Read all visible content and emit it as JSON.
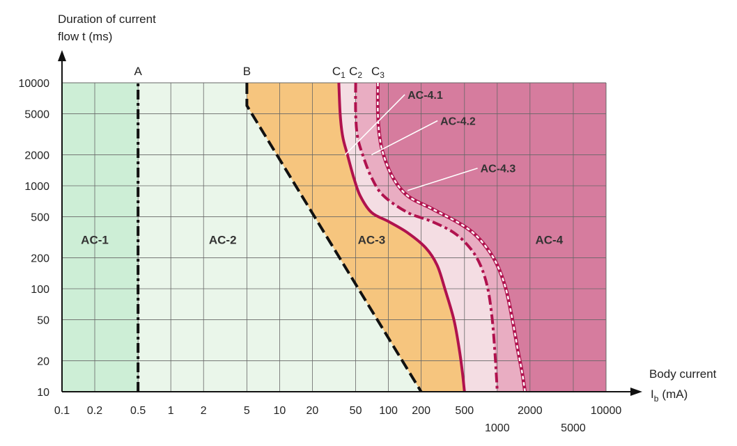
{
  "chart_data": {
    "type": "line",
    "title": "",
    "xlabel": "Body current",
    "xlabel_symbol": "I",
    "xlabel_sub": "b",
    "xlabel_unit": "(mA)",
    "ylabel_line1": "Duration of current",
    "ylabel_line2": "flow t (ms)",
    "x_scale": "log",
    "y_scale": "log",
    "xlim": [
      0.1,
      10000
    ],
    "ylim": [
      10,
      10000
    ],
    "grid": true,
    "x_ticks": [
      {
        "value": 0.1,
        "label": "0.1",
        "row": 1
      },
      {
        "value": 0.2,
        "label": "0.2",
        "row": 1
      },
      {
        "value": 0.5,
        "label": "0.5",
        "row": 1
      },
      {
        "value": 1,
        "label": "1",
        "row": 1
      },
      {
        "value": 2,
        "label": "2",
        "row": 1
      },
      {
        "value": 5,
        "label": "5",
        "row": 1
      },
      {
        "value": 10,
        "label": "10",
        "row": 1
      },
      {
        "value": 20,
        "label": "20",
        "row": 1
      },
      {
        "value": 50,
        "label": "50",
        "row": 1
      },
      {
        "value": 100,
        "label": "100",
        "row": 1
      },
      {
        "value": 200,
        "label": "200",
        "row": 1
      },
      {
        "value": 500,
        "label": "500",
        "row": 1
      },
      {
        "value": 1000,
        "label": "1000",
        "row": 2
      },
      {
        "value": 2000,
        "label": "2000",
        "row": 1
      },
      {
        "value": 5000,
        "label": "5000",
        "row": 2
      },
      {
        "value": 10000,
        "label": "10000",
        "row": 1
      }
    ],
    "y_ticks": [
      {
        "value": 10,
        "label": "10"
      },
      {
        "value": 20,
        "label": "20"
      },
      {
        "value": 50,
        "label": "50"
      },
      {
        "value": 100,
        "label": "100"
      },
      {
        "value": 200,
        "label": "200"
      },
      {
        "value": 500,
        "label": "500"
      },
      {
        "value": 1000,
        "label": "1000"
      },
      {
        "value": 2000,
        "label": "2000"
      },
      {
        "value": 5000,
        "label": "5000"
      },
      {
        "value": 10000,
        "label": "10000"
      }
    ],
    "colors": {
      "ac1": "#cdeed6",
      "ac2": "#eaf6ea",
      "ac3": "#f6c57e",
      "ac41": "#f4dde3",
      "ac42": "#e9adc2",
      "ac4": "#d67c9e",
      "c_curves": "#b0124e",
      "ab_lines": "#111111",
      "grid": "#666666"
    },
    "zones": [
      {
        "label": "AC-1",
        "x": 0.2,
        "y": 300
      },
      {
        "label": "AC-2",
        "x": 3,
        "y": 300
      },
      {
        "label": "AC-3",
        "x": 70,
        "y": 300
      },
      {
        "label": "AC-4",
        "x": 3000,
        "y": 300
      }
    ],
    "series": [
      {
        "name": "A",
        "style": "dashdot",
        "points": [
          [
            0.5,
            10
          ],
          [
            0.5,
            10000
          ]
        ]
      },
      {
        "name": "B",
        "style": "dashed",
        "points": [
          [
            5,
            10000
          ],
          [
            5,
            6000
          ],
          [
            200,
            10
          ]
        ]
      },
      {
        "name": "C",
        "sub": "1",
        "style": "solid",
        "points": [
          [
            35,
            10000
          ],
          [
            36,
            5000
          ],
          [
            38,
            3000
          ],
          [
            42,
            2000
          ],
          [
            48,
            1200
          ],
          [
            55,
            800
          ],
          [
            70,
            550
          ],
          [
            100,
            450
          ],
          [
            150,
            350
          ],
          [
            220,
            250
          ],
          [
            280,
            170
          ],
          [
            330,
            100
          ],
          [
            400,
            50
          ],
          [
            450,
            25
          ],
          [
            480,
            15
          ],
          [
            500,
            10
          ]
        ]
      },
      {
        "name": "C",
        "sub": "2",
        "style": "dashdot",
        "points": [
          [
            50,
            10000
          ],
          [
            50,
            5000
          ],
          [
            52,
            3000
          ],
          [
            58,
            2000
          ],
          [
            70,
            1200
          ],
          [
            90,
            800
          ],
          [
            150,
            550
          ],
          [
            250,
            450
          ],
          [
            400,
            350
          ],
          [
            560,
            250
          ],
          [
            700,
            170
          ],
          [
            820,
            100
          ],
          [
            900,
            50
          ],
          [
            950,
            25
          ],
          [
            980,
            15
          ],
          [
            1000,
            10
          ]
        ]
      },
      {
        "name": "C",
        "sub": "3",
        "style": "dotted-white",
        "points": [
          [
            80,
            10000
          ],
          [
            80,
            5000
          ],
          [
            83,
            3000
          ],
          [
            90,
            2000
          ],
          [
            110,
            1200
          ],
          [
            150,
            800
          ],
          [
            250,
            600
          ],
          [
            420,
            450
          ],
          [
            600,
            350
          ],
          [
            800,
            250
          ],
          [
            1000,
            170
          ],
          [
            1200,
            100
          ],
          [
            1380,
            50
          ],
          [
            1550,
            25
          ],
          [
            1700,
            15
          ],
          [
            1800,
            10
          ]
        ]
      }
    ],
    "annotations": [
      {
        "label": "AC-4.1",
        "target": [
          40,
          2000
        ],
        "text_at": [
          150,
          7000
        ]
      },
      {
        "label": "AC-4.2",
        "target": [
          70,
          2000
        ],
        "text_at": [
          300,
          3900
        ]
      },
      {
        "label": "AC-4.3",
        "target": [
          150,
          900
        ],
        "text_at": [
          700,
          1350
        ]
      }
    ]
  }
}
